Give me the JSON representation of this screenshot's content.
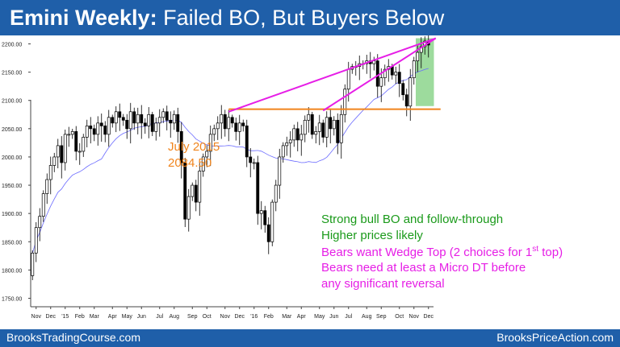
{
  "header": {
    "title_bold": "Emini Weekly:",
    "title_rest": " Failed BO, But Buyers Below",
    "bg_color": "#1f5fa9"
  },
  "footer": {
    "left": "BrooksTradingCourse.com",
    "right": "BrooksPriceAction.com"
  },
  "annotations": {
    "ref_label_line1": "July 2015",
    "ref_label_line2": "2084.50",
    "bull_line1": "Strong bull BO and follow-through",
    "bull_line2": "Higher prices likely",
    "bear_line1_pre": "Bears want Wedge Top  (2 choices for 1",
    "bear_line1_sup": "st",
    "bear_line1_post": " top)",
    "bear_line2": "Bears need at least a Micro DT before",
    "bear_line3": "any significant reversal",
    "colors": {
      "orange": "#f0841c",
      "green": "#1a9a1a",
      "magenta": "#e61ee6"
    }
  },
  "chart_data": {
    "type": "candlestick",
    "title": "Emini Weekly",
    "ylim": [
      1735,
      2215
    ],
    "yticks": [
      2200,
      2150,
      2100,
      2050,
      2000,
      1950,
      1900,
      1850,
      1800,
      1750
    ],
    "ytick_labels": [
      "2200.00",
      "2150.00",
      "2100.00",
      "2050.00",
      "2000.00",
      "1950.00",
      "1900.00",
      "1850.00",
      "1800.00",
      "1750.00"
    ],
    "xtick_labels": [
      "Nov",
      "Dec",
      "'15",
      "Feb",
      "Mar",
      "Apr",
      "May",
      "Jun",
      "Jul",
      "Aug",
      "Sep",
      "Oct",
      "Nov",
      "Dec",
      "'16",
      "Feb",
      "Mar",
      "Apr",
      "May",
      "Jun",
      "Jul",
      "Aug",
      "Sep",
      "Oct",
      "Nov",
      "Dec"
    ],
    "xtick_bar_index": [
      1,
      5,
      9,
      13,
      17,
      22,
      26,
      30,
      35,
      39,
      44,
      48,
      53,
      57,
      61,
      65,
      70,
      74,
      79,
      83,
      87,
      92,
      96,
      101,
      105,
      109
    ],
    "closes": [
      1830,
      1875,
      1895,
      1935,
      1960,
      1985,
      2000,
      2020,
      1990,
      2040,
      2040,
      2045,
      2010,
      2010,
      2035,
      2055,
      2050,
      2040,
      2060,
      2055,
      2040,
      2070,
      2060,
      2080,
      2070,
      2065,
      2050,
      2080,
      2060,
      2075,
      2060,
      2055,
      2075,
      2045,
      2060,
      2070,
      2080,
      2065,
      2060,
      2075,
      2045,
      1990,
      1890,
      1930,
      1950,
      1920,
      1975,
      2000,
      2010,
      2040,
      2050,
      2060,
      2075,
      2050,
      2070,
      2060,
      2045,
      2060,
      2055,
      2000,
      1990,
      1990,
      1900,
      1905,
      1880,
      1850,
      1920,
      1950,
      2000,
      2020,
      2025,
      2030,
      2050,
      2030,
      2040,
      2065,
      2075,
      2040,
      2045,
      2060,
      2035,
      2070,
      2050,
      2065,
      2025,
      2075,
      2120,
      2155,
      2160,
      2160,
      2165,
      2165,
      2170,
      2165,
      2170,
      2125,
      2140,
      2155,
      2160,
      2145,
      2150,
      2130,
      2110,
      2090,
      2140,
      2170,
      2185,
      2195,
      2205,
      2198
    ],
    "ref_level": {
      "label": "July 2015",
      "value": 2084.5,
      "start_index": 54,
      "end_index": 111
    },
    "trendlines": [
      {
        "from": [
          54,
          2080
        ],
        "to": [
          111,
          2210
        ]
      },
      {
        "from": [
          80,
          2082
        ],
        "to": [
          111,
          2210
        ]
      }
    ],
    "highlight_range": {
      "start_index": 106,
      "end_index": 110,
      "ylim": [
        2090,
        2210
      ]
    },
    "moving_average": {
      "period": 20
    }
  }
}
